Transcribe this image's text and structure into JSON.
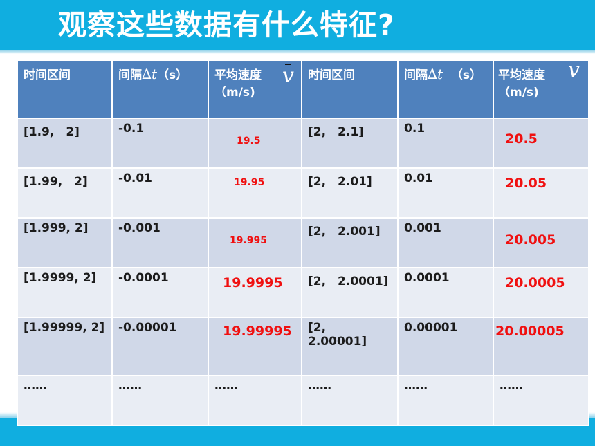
{
  "title": "观察这些数据有什么特征?",
  "headers": {
    "interval": "时间区间",
    "delta_label": "间隔",
    "delta_symbol": "∆t",
    "delta_unit": "（s）",
    "speed_label": "平均速度",
    "speed_unit": "（m/s)",
    "speed_symbol": "v"
  },
  "rows": [
    {
      "left_interval": "[1.9,　2]",
      "left_dt": "-0.1",
      "left_v": "19.5",
      "right_interval": "[2,　2.1]",
      "right_dt": "0.1",
      "right_v": "20.5"
    },
    {
      "left_interval": "[1.99,　2]",
      "left_dt": "-0.01",
      "left_v": "19.95",
      "right_interval": "[2,　2.01]",
      "right_dt": "0.01",
      "right_v": "20.05"
    },
    {
      "left_interval": "[1.999, 2]",
      "left_dt": "-0.001",
      "left_v": "19.995",
      "right_interval": "[2,　2.001]",
      "right_dt": "0.001",
      "right_v": "20.005"
    },
    {
      "left_interval": "[1.9999, 2]",
      "left_dt": "-0.0001",
      "left_v": "19.9995",
      "right_interval": "[2,　2.0001]",
      "right_dt": "0.0001",
      "right_v": "20.0005"
    },
    {
      "left_interval": "[1.99999, 2]",
      "left_dt": "-0.00001",
      "left_v": "19.99995",
      "right_interval": "[2,\n2.00001]",
      "right_dt": "0.00001",
      "right_v": "20.00005"
    }
  ],
  "ellipsis": "……",
  "colors": {
    "accent": "#10aee0",
    "header": "#4f81bd",
    "value": "#f01010"
  }
}
